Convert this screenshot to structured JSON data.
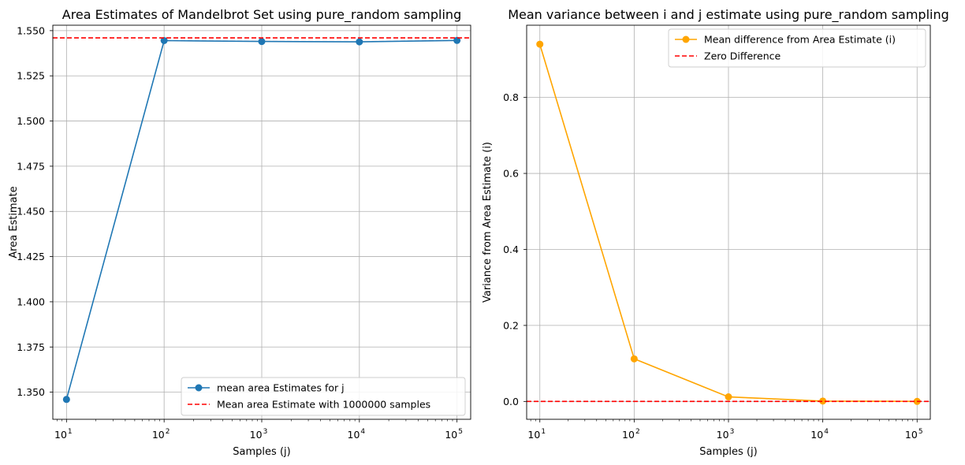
{
  "colors": {
    "series_left": "#1f77b4",
    "series_right": "#ffa500",
    "reference": "#ff0000",
    "grid": "#b0b0b0"
  },
  "chart_data": [
    {
      "type": "line",
      "title": "Area Estimates of Mandelbrot Set using pure_random sampling",
      "xlabel": "Samples (j)",
      "ylabel": "Area Estimate",
      "xscale": "log",
      "xlim": [
        10,
        100000
      ],
      "ylim": [
        1.335,
        1.553
      ],
      "xticks": [
        {
          "base": "10",
          "exp": "1"
        },
        {
          "base": "10",
          "exp": "2"
        },
        {
          "base": "10",
          "exp": "3"
        },
        {
          "base": "10",
          "exp": "4"
        },
        {
          "base": "10",
          "exp": "5"
        }
      ],
      "yticks": [
        "1.350",
        "1.375",
        "1.400",
        "1.425",
        "1.450",
        "1.475",
        "1.500",
        "1.525",
        "1.550"
      ],
      "grid": true,
      "legend_position": "lower-right",
      "series": [
        {
          "name": "mean area Estimates for j",
          "style": "line-marker",
          "color": "#1f77b4",
          "x": [
            10,
            100,
            1000,
            10000,
            100000
          ],
          "y": [
            1.346,
            1.5445,
            1.544,
            1.5438,
            1.5446
          ]
        },
        {
          "name": " Mean area Estimate with 1000000 samples",
          "style": "dashed-hline",
          "color": "#ff0000",
          "y": 1.546
        }
      ]
    },
    {
      "type": "line",
      "title": "Mean variance between i and j estimate using pure_random sampling",
      "xlabel": "Samples (j)",
      "ylabel": "Variance from Area Estimate (i)",
      "xscale": "log",
      "xlim": [
        10,
        100000
      ],
      "ylim": [
        -0.047,
        0.99
      ],
      "xticks": [
        {
          "base": "10",
          "exp": "1"
        },
        {
          "base": "10",
          "exp": "2"
        },
        {
          "base": "10",
          "exp": "3"
        },
        {
          "base": "10",
          "exp": "4"
        },
        {
          "base": "10",
          "exp": "5"
        }
      ],
      "yticks": [
        "0.0",
        "0.2",
        "0.4",
        "0.6",
        "0.8"
      ],
      "grid": true,
      "legend_position": "upper-right",
      "series": [
        {
          "name": "Mean difference from Area Estimate (i)",
          "style": "line-marker",
          "color": "#ffa500",
          "x": [
            10,
            100,
            1000,
            10000,
            100000
          ],
          "y": [
            0.94,
            0.112,
            0.012,
            0.001,
            0.0001
          ]
        },
        {
          "name": "Zero Difference",
          "style": "dashed-hline",
          "color": "#ff0000",
          "y": 0
        }
      ]
    }
  ]
}
